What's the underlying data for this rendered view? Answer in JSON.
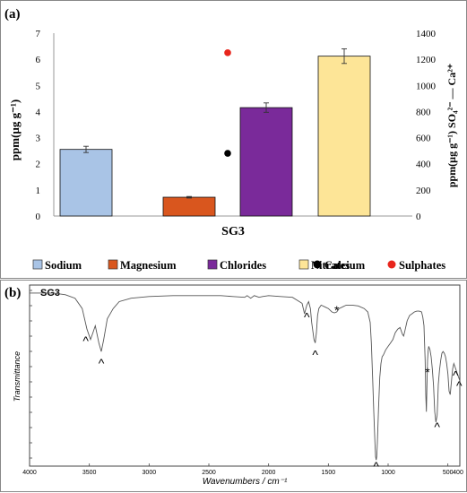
{
  "panel_a": {
    "label": "(a)",
    "legend": [
      {
        "name": "Sodium",
        "marker": "square",
        "color": "#a9c4e6"
      },
      {
        "name": "Magnesium",
        "marker": "square",
        "color": "#d9561e"
      },
      {
        "name": "Chlorides",
        "marker": "square",
        "color": "#7a2a9a"
      },
      {
        "name": "Nitrates",
        "marker": "square",
        "color": "#fde597"
      },
      {
        "name": "Calcium",
        "marker": "circle",
        "color": "#000000"
      },
      {
        "name": "Sulphates",
        "marker": "circle",
        "color": "#e8261d"
      }
    ]
  },
  "panel_b": {
    "label": "(b)",
    "sample_label": "SG3",
    "annotations": [
      "^",
      "^",
      "^",
      "^",
      "*",
      "^",
      "*",
      "^",
      "^",
      "^"
    ]
  },
  "chart_data": [
    {
      "type": "bar",
      "title": "",
      "categories": [
        "SG3"
      ],
      "xlabel": "SG3",
      "ylabel": "ppm(µg g⁻¹)",
      "ylabel_right": "ppm(µg g⁻¹) SO₄²⁻ — Ca²⁺",
      "ylim": [
        0,
        7
      ],
      "ylim_right": [
        0,
        1400
      ],
      "yticks": [
        "0",
        "1",
        "2",
        "3",
        "4",
        "5",
        "6",
        "7"
      ],
      "yticks_right": [
        "0",
        "200",
        "400",
        "600",
        "800",
        "1000",
        "1200",
        "1400"
      ],
      "grid": false,
      "legend_position": "bottom",
      "series": [
        {
          "name": "Sodium",
          "values": [
            2.55
          ],
          "error": [
            0.12
          ],
          "color": "#a9c4e6",
          "axis": "left"
        },
        {
          "name": "Magnesium",
          "values": [
            0.72
          ],
          "error": [
            0.03
          ],
          "color": "#d9561e",
          "axis": "left"
        },
        {
          "name": "Chlorides",
          "values": [
            4.15
          ],
          "error": [
            0.18
          ],
          "color": "#7a2a9a",
          "axis": "left"
        },
        {
          "name": "Nitrates",
          "values": [
            6.12
          ],
          "error": [
            0.28
          ],
          "color": "#fde597",
          "axis": "left"
        },
        {
          "name": "Calcium",
          "type": "scatter",
          "values": [
            480
          ],
          "color": "#000000",
          "axis": "right"
        },
        {
          "name": "Sulphates",
          "type": "scatter",
          "values": [
            1250
          ],
          "color": "#e8261d",
          "axis": "right"
        }
      ]
    },
    {
      "type": "line",
      "title": "",
      "xlabel": "Wavenumbers / cm⁻¹",
      "ylabel": "Transmittance",
      "xlim": [
        4000,
        400
      ],
      "xticks": [
        "4000",
        "3500",
        "3000",
        "2500",
        "2000",
        "1500",
        "1000",
        "500",
        "400"
      ],
      "ylim": [
        0,
        1
      ],
      "grid": false,
      "series": [
        {
          "name": "SG3",
          "x": [
            4000,
            3800,
            3700,
            3620,
            3560,
            3520,
            3490,
            3470,
            3450,
            3420,
            3400,
            3380,
            3350,
            3300,
            3250,
            3150,
            3000,
            2800,
            2600,
            2400,
            2300,
            2200,
            2180,
            2150,
            2120,
            2080,
            2050,
            2000,
            1900,
            1800,
            1720,
            1700,
            1680,
            1665,
            1650,
            1640,
            1620,
            1610,
            1600,
            1590,
            1580,
            1560,
            1530,
            1500,
            1470,
            1450,
            1430,
            1410,
            1380,
            1350,
            1300,
            1250,
            1200,
            1170,
            1150,
            1140,
            1130,
            1120,
            1110,
            1105,
            1100,
            1095,
            1090,
            1080,
            1070,
            1060,
            1050,
            1040,
            1020,
            1000,
            980,
            960,
            940,
            920,
            900,
            880,
            870,
            860,
            850,
            840,
            820,
            800,
            780,
            760,
            740,
            720,
            710,
            700,
            690,
            685,
            680,
            675,
            670,
            665,
            660,
            650,
            640,
            630,
            620,
            610,
            600,
            590,
            585,
            580,
            570,
            560,
            550,
            540,
            530,
            520,
            510,
            500,
            490,
            480,
            470,
            460,
            450,
            440,
            430,
            420,
            410,
            400
          ],
          "values": [
            0.99,
            0.99,
            0.98,
            0.96,
            0.9,
            0.78,
            0.72,
            0.76,
            0.8,
            0.7,
            0.65,
            0.72,
            0.84,
            0.9,
            0.94,
            0.96,
            0.97,
            0.975,
            0.975,
            0.975,
            0.97,
            0.965,
            0.975,
            0.96,
            0.975,
            0.965,
            0.97,
            0.975,
            0.97,
            0.965,
            0.93,
            0.87,
            0.92,
            0.94,
            0.9,
            0.82,
            0.72,
            0.7,
            0.76,
            0.86,
            0.9,
            0.92,
            0.91,
            0.9,
            0.88,
            0.875,
            0.88,
            0.9,
            0.91,
            0.92,
            0.92,
            0.915,
            0.9,
            0.88,
            0.82,
            0.7,
            0.5,
            0.3,
            0.12,
            0.04,
            0.02,
            0.04,
            0.12,
            0.32,
            0.5,
            0.58,
            0.62,
            0.63,
            0.66,
            0.68,
            0.7,
            0.72,
            0.76,
            0.78,
            0.79,
            0.75,
            0.74,
            0.77,
            0.8,
            0.83,
            0.86,
            0.87,
            0.88,
            0.885,
            0.885,
            0.88,
            0.85,
            0.8,
            0.6,
            0.4,
            0.3,
            0.45,
            0.6,
            0.66,
            0.68,
            0.66,
            0.62,
            0.55,
            0.45,
            0.3,
            0.24,
            0.28,
            0.36,
            0.46,
            0.54,
            0.6,
            0.64,
            0.65,
            0.64,
            0.62,
            0.58,
            0.52,
            0.42,
            0.4,
            0.48,
            0.55,
            0.58,
            0.56,
            0.54,
            0.52,
            0.5,
            0.48
          ]
        }
      ]
    }
  ]
}
